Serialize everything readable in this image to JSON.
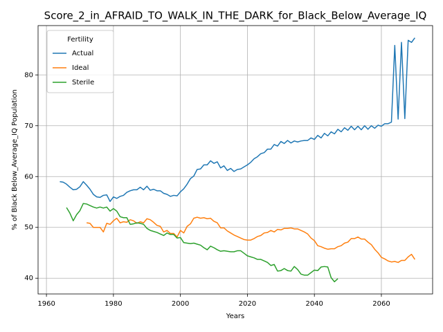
{
  "chart_data": {
    "type": "line",
    "title": "Score_2_in_AFRAID_TO_WALK_IN_THE_DARK_for_Black_Below_Average_IQ",
    "x_label": "Years",
    "y_label": "% of Black Below_Average_IQ Population",
    "legend_title": "Fertility",
    "legend": "upper left",
    "grid": true,
    "xlim": [
      1957.5,
      2075.3
    ],
    "ylim": [
      36.9,
      89.7
    ],
    "xticks": [
      1960,
      1980,
      2000,
      2020,
      2040,
      2060
    ],
    "yticks": [
      40,
      50,
      60,
      70,
      80
    ],
    "x": [
      1964,
      1965,
      1966,
      1967,
      1968,
      1969,
      1970,
      1971,
      1972,
      1973,
      1974,
      1975,
      1976,
      1977,
      1978,
      1979,
      1980,
      1981,
      1982,
      1983,
      1984,
      1985,
      1986,
      1987,
      1988,
      1989,
      1990,
      1991,
      1992,
      1993,
      1994,
      1995,
      1996,
      1997,
      1998,
      1999,
      2000,
      2001,
      2002,
      2003,
      2004,
      2005,
      2006,
      2007,
      2008,
      2009,
      2010,
      2011,
      2012,
      2013,
      2014,
      2015,
      2016,
      2017,
      2018,
      2019,
      2020,
      2021,
      2022,
      2023,
      2024,
      2025,
      2026,
      2027,
      2028,
      2029,
      2030,
      2031,
      2032,
      2033,
      2034,
      2035,
      2036,
      2037,
      2038,
      2039,
      2040,
      2041,
      2042,
      2043,
      2044,
      2045,
      2046,
      2047,
      2048,
      2049,
      2050,
      2051,
      2052,
      2053,
      2054,
      2055,
      2056,
      2057,
      2058,
      2059,
      2060,
      2061,
      2062,
      2063,
      2064,
      2065,
      2066,
      2067,
      2068,
      2069,
      2070
    ],
    "series": [
      {
        "name": "Actual",
        "color": "#1f77b4",
        "values": [
          59.0,
          58.9,
          58.5,
          57.9,
          57.4,
          57.5,
          58.0,
          59.0,
          58.3,
          57.5,
          56.5,
          56.0,
          55.9,
          56.3,
          56.4,
          55.1,
          56.0,
          55.7,
          56.1,
          56.3,
          56.9,
          57.2,
          57.4,
          57.4,
          57.9,
          57.4,
          58.1,
          57.3,
          57.5,
          57.2,
          57.2,
          56.7,
          56.5,
          56.1,
          56.3,
          56.2,
          57.0,
          57.6,
          58.5,
          59.6,
          60.1,
          61.4,
          61.5,
          62.3,
          62.3,
          63.1,
          62.6,
          62.9,
          61.7,
          62.1,
          61.2,
          61.6,
          61.0,
          61.4,
          61.5,
          61.9,
          62.3,
          62.8,
          63.5,
          63.9,
          64.5,
          64.7,
          65.4,
          65.4,
          66.3,
          66.0,
          66.9,
          66.5,
          67.1,
          66.6,
          67.0,
          66.8,
          67.0,
          67.1,
          67.1,
          67.6,
          67.3,
          68.1,
          67.6,
          68.5,
          68.0,
          68.8,
          68.4,
          69.3,
          68.8,
          69.6,
          69.1,
          69.9,
          69.2,
          69.9,
          69.2,
          70.0,
          69.3,
          70.0,
          69.5,
          70.1,
          69.9,
          70.4,
          70.4,
          70.7,
          85.8,
          71.3,
          86.4,
          71.4,
          86.8,
          86.4,
          87.3
        ]
      },
      {
        "name": "Ideal",
        "color": "#ff7f0e",
        "values": [
          null,
          null,
          null,
          null,
          null,
          null,
          null,
          null,
          50.9,
          50.8,
          50.0,
          50.0,
          50.0,
          49.1,
          50.8,
          50.6,
          51.3,
          51.8,
          50.9,
          51.1,
          51.0,
          51.5,
          51.3,
          50.8,
          51.1,
          50.9,
          51.7,
          51.5,
          51.0,
          50.4,
          50.2,
          49.1,
          49.4,
          48.8,
          48.8,
          48.1,
          49.4,
          48.9,
          50.2,
          50.7,
          51.8,
          52.0,
          51.8,
          51.9,
          51.7,
          51.8,
          51.2,
          50.9,
          49.9,
          49.9,
          49.3,
          48.9,
          48.5,
          48.2,
          47.9,
          47.6,
          47.5,
          47.5,
          47.8,
          48.2,
          48.4,
          48.9,
          49.0,
          49.4,
          49.1,
          49.6,
          49.5,
          49.8,
          49.8,
          49.9,
          49.7,
          49.7,
          49.4,
          49.1,
          48.7,
          47.9,
          47.4,
          46.4,
          46.2,
          45.9,
          45.7,
          45.8,
          45.8,
          46.2,
          46.4,
          46.9,
          47.1,
          47.8,
          47.8,
          48.1,
          47.7,
          47.7,
          47.1,
          46.6,
          45.7,
          45.0,
          44.1,
          43.8,
          43.4,
          43.2,
          43.3,
          43.1,
          43.5,
          43.5,
          44.2,
          44.7,
          43.7
        ]
      },
      {
        "name": "Sterile",
        "color": "#2ca02c",
        "values": [
          null,
          null,
          53.9,
          52.8,
          51.3,
          52.5,
          53.3,
          54.7,
          54.6,
          54.3,
          54.0,
          53.8,
          54.0,
          53.8,
          54.0,
          53.2,
          53.7,
          53.2,
          52.1,
          51.9,
          51.9,
          50.6,
          50.7,
          50.9,
          50.8,
          50.6,
          49.8,
          49.4,
          49.2,
          49.0,
          48.7,
          48.4,
          48.9,
          48.6,
          48.6,
          47.9,
          48.0,
          47.0,
          46.9,
          46.8,
          46.9,
          46.7,
          46.5,
          46.0,
          45.6,
          46.3,
          46.0,
          45.6,
          45.3,
          45.4,
          45.3,
          45.2,
          45.2,
          45.4,
          45.4,
          44.9,
          44.4,
          44.2,
          44.0,
          43.7,
          43.7,
          43.4,
          43.1,
          42.5,
          42.7,
          41.4,
          41.5,
          41.9,
          41.5,
          41.4,
          42.3,
          41.7,
          40.8,
          40.6,
          40.6,
          41.1,
          41.6,
          41.5,
          42.2,
          42.3,
          42.2,
          40.1,
          39.3,
          39.9,
          null,
          null,
          null,
          null,
          null,
          null,
          null,
          null,
          null,
          null,
          null,
          null,
          null,
          null,
          null,
          null,
          null,
          null,
          null,
          null,
          null,
          null,
          null
        ]
      }
    ]
  }
}
